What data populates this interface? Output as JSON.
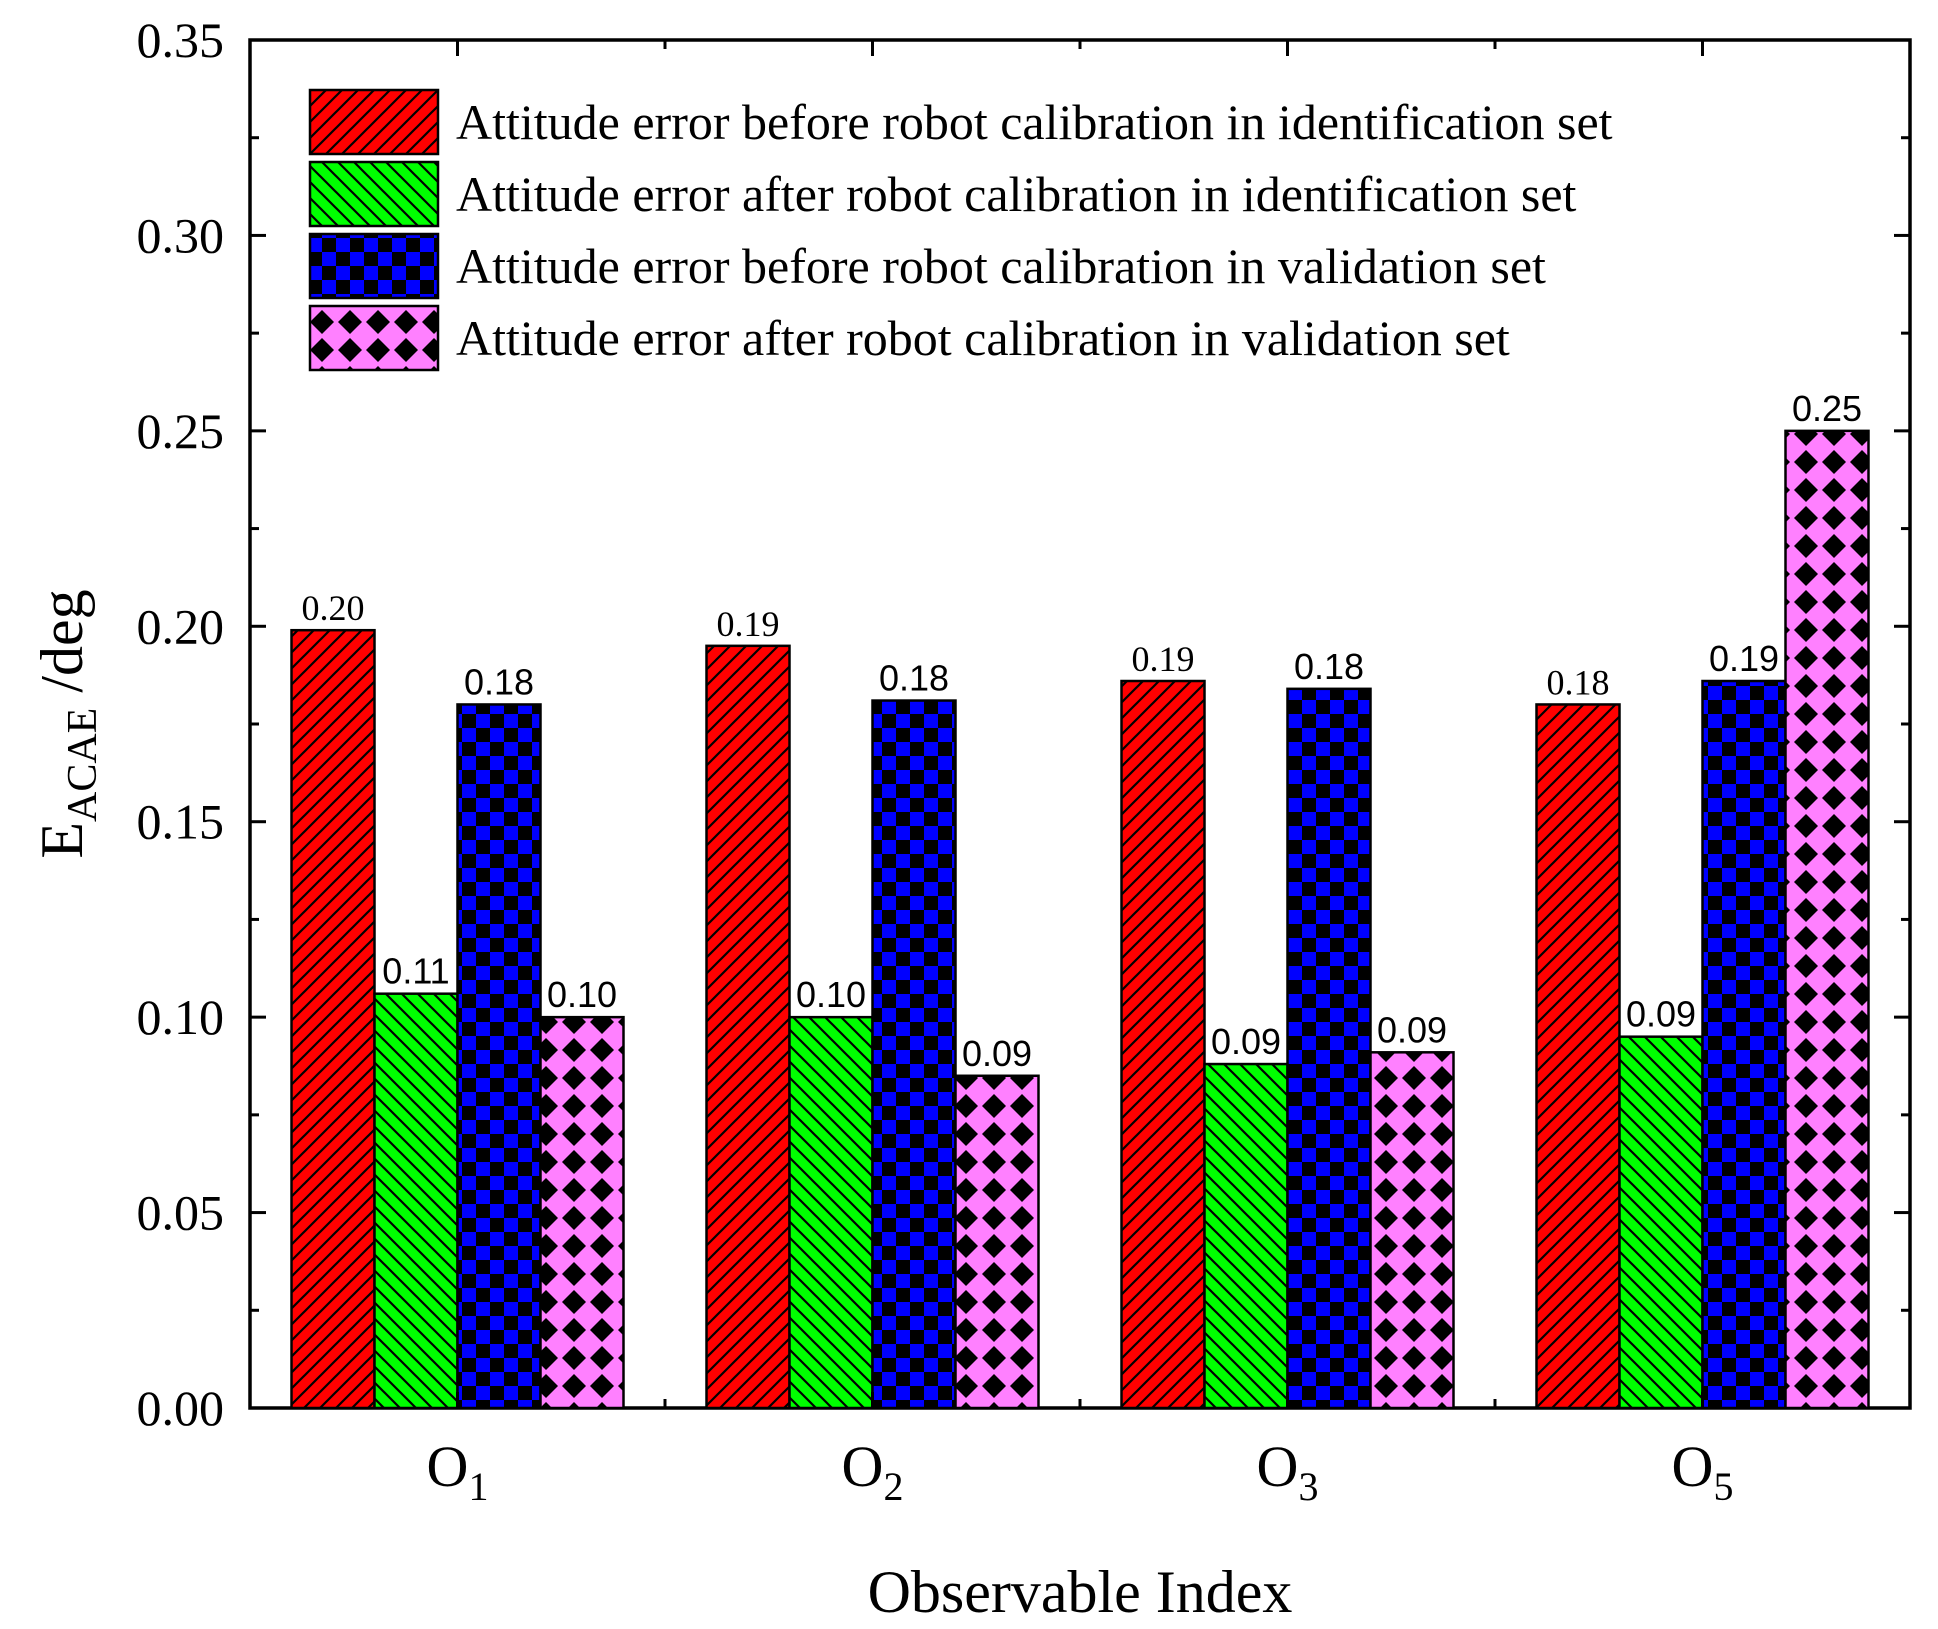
{
  "chart_data": {
    "type": "bar",
    "title": "",
    "xlabel": "Observable Index",
    "ylabel": {
      "main": "E",
      "subscript": "ACAE",
      "suffix": " /deg"
    },
    "ylim": [
      0,
      0.35
    ],
    "yticks": [
      "0.00",
      "0.05",
      "0.10",
      "0.15",
      "0.20",
      "0.25",
      "0.30",
      "0.35"
    ],
    "categories": [
      {
        "main": "O",
        "sub": "1"
      },
      {
        "main": "O",
        "sub": "2"
      },
      {
        "main": "O",
        "sub": "3"
      },
      {
        "main": "O",
        "sub": "5"
      }
    ],
    "legend_position": "top-left",
    "series": [
      {
        "name": "Attitude error before robot calibration in identification set",
        "color": "#ff0000",
        "pattern": "diagonal-hatch",
        "values": [
          0.199,
          0.195,
          0.186,
          0.18
        ],
        "labels": [
          "0.20",
          "0.19",
          "0.19",
          "0.18"
        ],
        "label_style": "serif"
      },
      {
        "name": "Attitude error after robot calibration in identification set",
        "color": "#00ff00",
        "pattern": "back-diagonal-hatch",
        "values": [
          0.106,
          0.1,
          0.088,
          0.095
        ],
        "labels": [
          "0.11",
          "0.10",
          "0.09",
          "0.09"
        ],
        "label_style": "sans"
      },
      {
        "name": "Attitude error before robot calibration in validation set",
        "color": "#0000ff",
        "pattern": "checker",
        "values": [
          0.18,
          0.181,
          0.184,
          0.186
        ],
        "labels": [
          "0.18",
          "0.18",
          "0.18",
          "0.19"
        ],
        "label_style": "sans"
      },
      {
        "name": "Attitude error after robot calibration in validation set",
        "color": "#ff80ff",
        "pattern": "diamond",
        "values": [
          0.1,
          0.085,
          0.091,
          0.25
        ],
        "labels": [
          "0.10",
          "0.09",
          "0.09",
          "0.25"
        ],
        "label_style": "sans"
      }
    ]
  }
}
